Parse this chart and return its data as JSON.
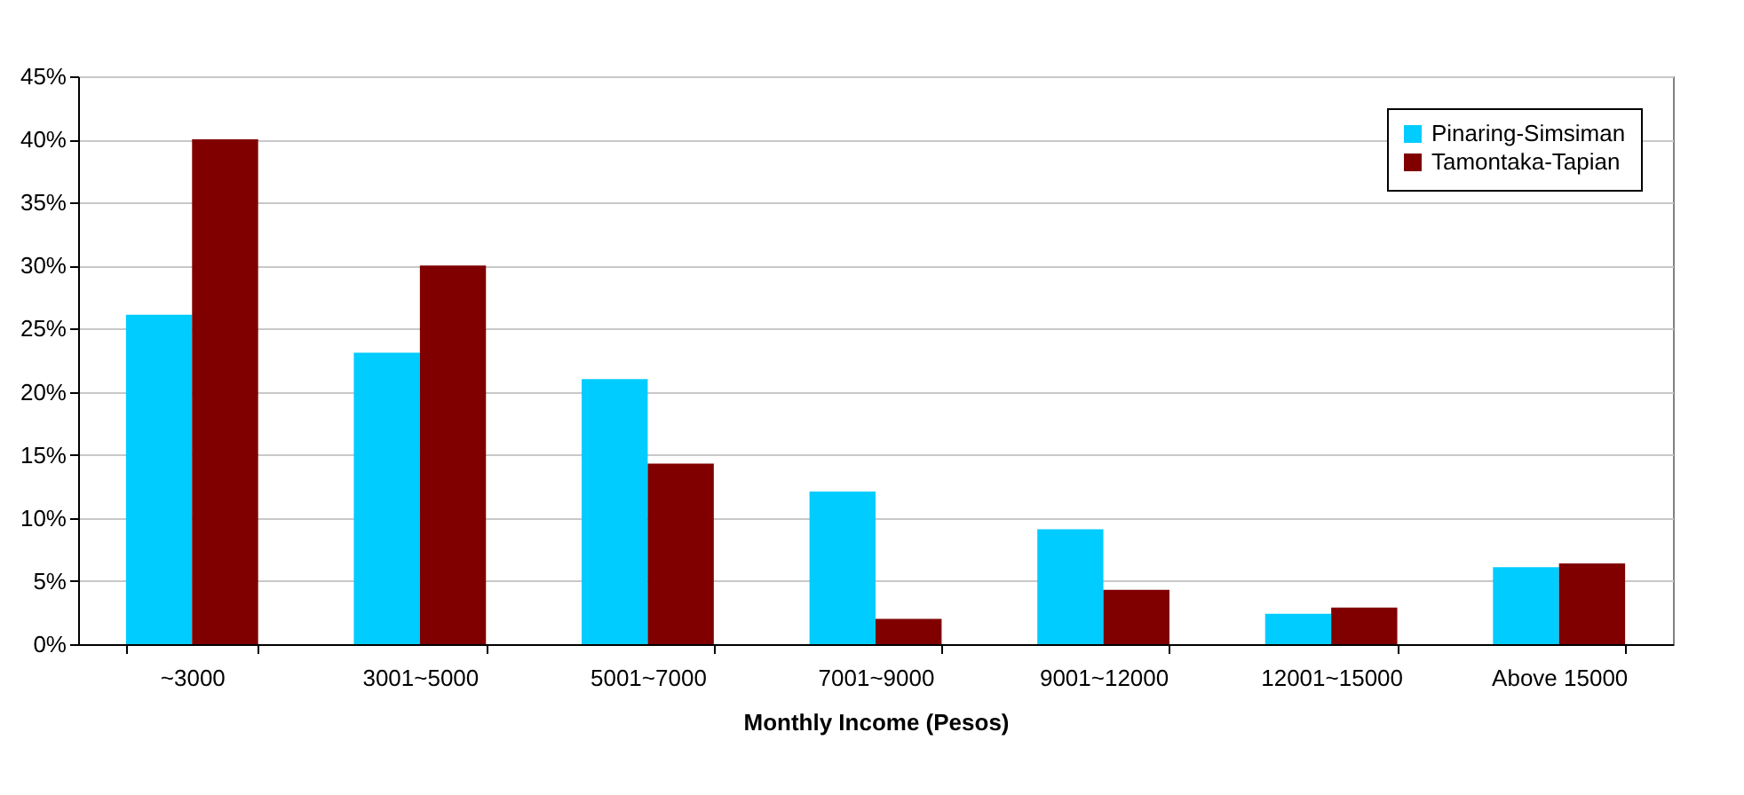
{
  "chart_data": {
    "type": "bar",
    "xlabel": "Monthly Income (Pesos)",
    "categories": [
      "~3000",
      "3001~5000",
      "5001~7000",
      "7001~9000",
      "9001~12000",
      "12001~15000",
      "Above 15000"
    ],
    "series": [
      {
        "name": "Pinaring-Simsiman",
        "color": "#00ccff",
        "values": [
          26.1,
          23.1,
          21.0,
          12.1,
          9.1,
          2.4,
          6.1
        ]
      },
      {
        "name": "Tamontaka-Tapian",
        "color": "#800000",
        "values": [
          40.0,
          30.0,
          14.3,
          2.0,
          4.3,
          2.9,
          6.4
        ]
      }
    ],
    "ylim": [
      0,
      45
    ],
    "yticks": [
      {
        "value": 0,
        "label": "0%"
      },
      {
        "value": 5,
        "label": "5%"
      },
      {
        "value": 10,
        "label": "10%"
      },
      {
        "value": 15,
        "label": "15%"
      },
      {
        "value": 20,
        "label": "20%"
      },
      {
        "value": 25,
        "label": "25%"
      },
      {
        "value": 30,
        "label": "30%"
      },
      {
        "value": 35,
        "label": "35%"
      },
      {
        "value": 40,
        "label": "40%"
      },
      {
        "value": 45,
        "label": "45%"
      }
    ],
    "grid": "y",
    "legend": "top right"
  }
}
